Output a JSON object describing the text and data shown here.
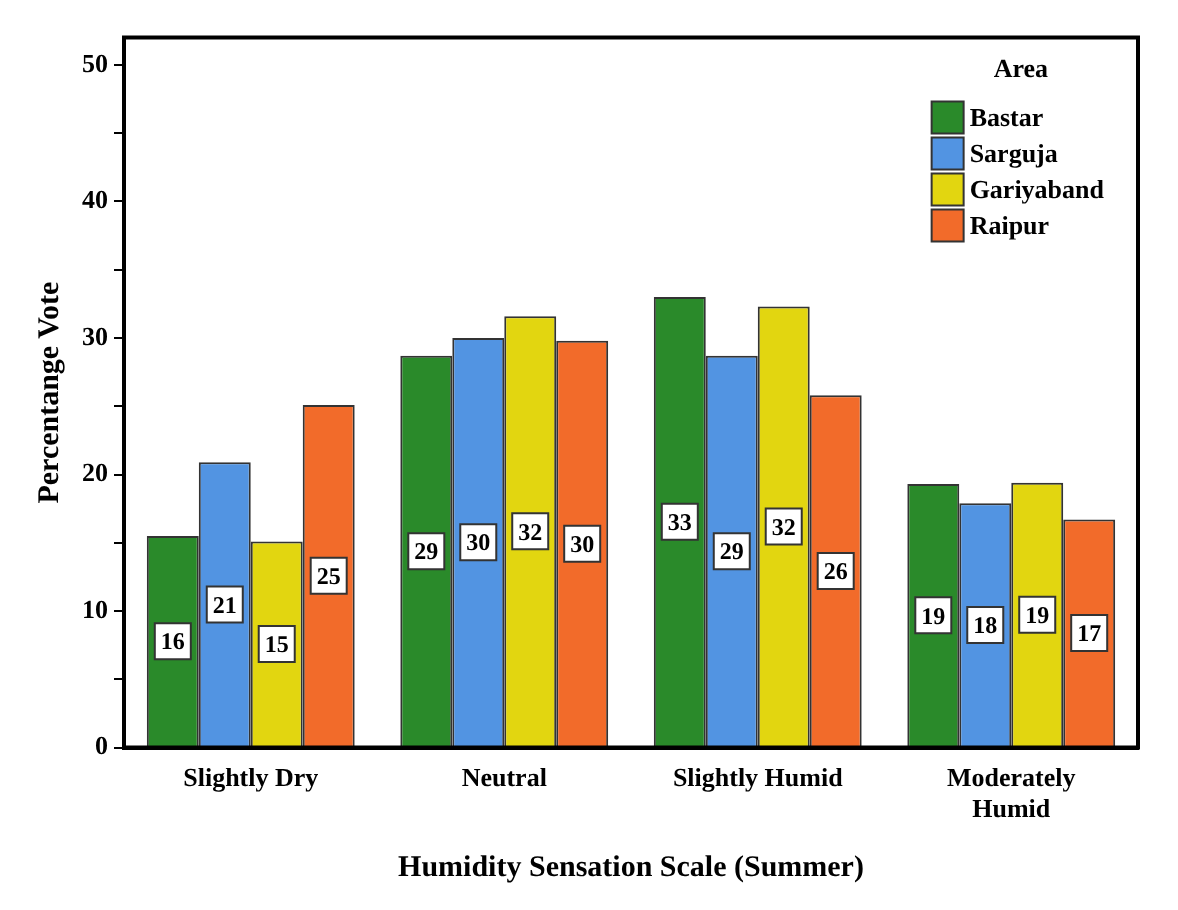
{
  "chart_data": {
    "type": "bar",
    "ylabel": "Percentange Vote",
    "xlabel": "Humidity Sensation Scale (Summer)",
    "legend_title": "Area",
    "legend": "top right",
    "categories": [
      "Slightly Dry",
      "Neutral",
      "Slightly Humid",
      "Moderately Humid"
    ],
    "ylim": [
      0,
      52
    ],
    "yticks": [
      0,
      {
        "value": 5,
        "label": null
      },
      10,
      {
        "value": 15,
        "label": null
      },
      20,
      {
        "value": 25,
        "label": null
      },
      30,
      {
        "value": 35,
        "label": null
      },
      40,
      {
        "value": 45,
        "label": null
      },
      50
    ],
    "grid": false,
    "series": [
      {
        "name": "Bastar",
        "color": "#2a8a2a",
        "values": [
          15.5,
          28.7,
          33,
          19.3
        ],
        "value_labels": [
          "16",
          "29",
          "33",
          "19"
        ]
      },
      {
        "name": "Sarguja",
        "color": "#5294e2",
        "values": [
          20.9,
          30,
          28.7,
          17.9
        ],
        "value_labels": [
          "21",
          "30",
          "29",
          "18"
        ]
      },
      {
        "name": "Gariyaband",
        "color": "#e2d610",
        "values": [
          15.1,
          31.6,
          32.3,
          19.4
        ],
        "value_labels": [
          "15",
          "32",
          "32",
          "19"
        ]
      },
      {
        "name": "Raipur",
        "color": "#f26b2a",
        "values": [
          25.1,
          29.8,
          25.8,
          16.7
        ],
        "value_labels": [
          "25",
          "30",
          "26",
          "17"
        ]
      }
    ]
  }
}
